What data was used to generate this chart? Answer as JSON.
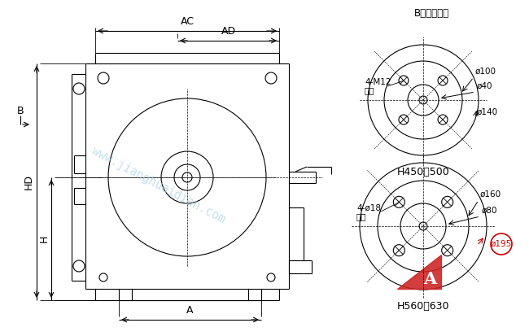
{
  "bg_color": "#ffffff",
  "line_color": "#000000",
  "red_color": "#cc0000",
  "title_right": "B向法兰尺寸",
  "label_AC": "AC",
  "label_AD": "AD",
  "label_A": "A",
  "label_B": "B",
  "label_HD": "HD",
  "label_H": "H",
  "flange1_title": "H450～500",
  "flange2_title": "H560～630",
  "flange1_bolt": "4-M12",
  "flange1_dist": "均布",
  "flange1_d1": "ø100",
  "flange1_d2": "ø40",
  "flange1_d3": "ø140",
  "flange2_bolt": "4-ø18",
  "flange2_dist": "均布",
  "flange2_d1": "ø160",
  "flange2_d2": "ø80",
  "flange2_d3": "ø195",
  "watermark": "www.jianghuaidian.com"
}
